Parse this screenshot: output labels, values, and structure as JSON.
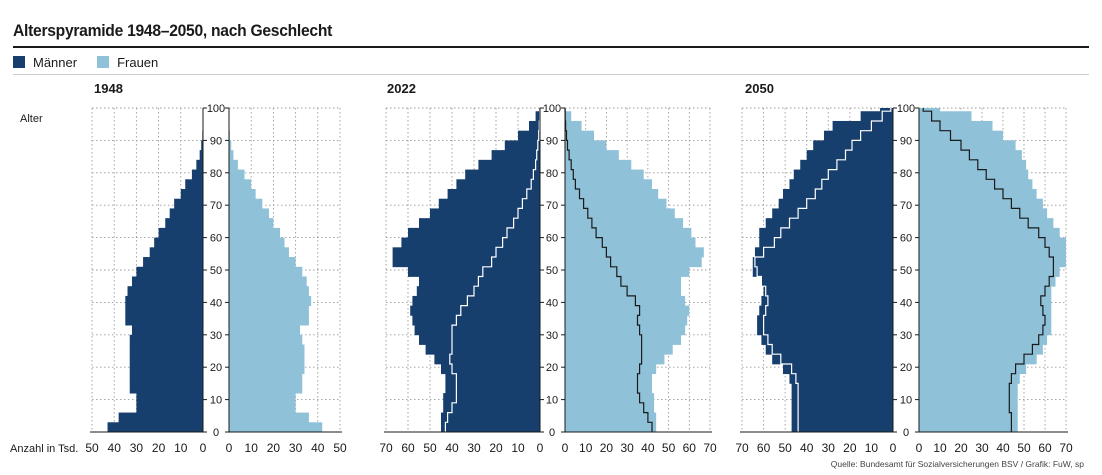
{
  "title": "Alterspyramide 1948–2050, nach Geschlecht",
  "legend": [
    {
      "label": "Männer",
      "color": "#173f6e"
    },
    {
      "label": "Frauen",
      "color": "#8fc1d8"
    }
  ],
  "source": "Quelle: Bundesamt für Sozialversicherungen BSV / Grafik: FuW, sp",
  "chart_data": {
    "type": "bar",
    "ylabel": "Alter",
    "xlabel": "Anzahl in Tsd.",
    "age_ticks": [
      0,
      10,
      20,
      30,
      40,
      50,
      60,
      70,
      80,
      90,
      100
    ],
    "ages": [
      0,
      3,
      6,
      9,
      12,
      15,
      18,
      21,
      24,
      27,
      30,
      33,
      36,
      39,
      42,
      45,
      48,
      51,
      54,
      57,
      60,
      63,
      66,
      69,
      72,
      75,
      78,
      81,
      84,
      87,
      90,
      93,
      96,
      99
    ],
    "panels": [
      {
        "year": "1948",
        "xmax": 50,
        "x_ticks_left": [
          50,
          40,
          30,
          20,
          10,
          0
        ],
        "x_ticks_right": [
          0,
          10,
          20,
          30,
          40,
          50
        ],
        "men": [
          43,
          38,
          30,
          30,
          33,
          33,
          33,
          33,
          33,
          33,
          32,
          35,
          35,
          35,
          34,
          32,
          30,
          27,
          24,
          22,
          20,
          17,
          15,
          13,
          10,
          8,
          5,
          3,
          1.5,
          0.8,
          0.3,
          0.1,
          0.05,
          0
        ],
        "women": [
          42,
          36,
          30,
          30,
          33,
          33,
          34,
          34,
          34,
          33,
          32,
          36,
          36,
          37,
          36,
          35,
          33,
          30,
          27,
          25,
          23,
          20,
          18,
          15,
          12,
          10,
          7,
          4,
          2,
          1,
          0.4,
          0.1,
          0.05,
          0
        ],
        "men_line": [],
        "women_line": []
      },
      {
        "year": "2022",
        "xmax": 70,
        "x_ticks_left": [
          70,
          60,
          50,
          40,
          30,
          20,
          10,
          0
        ],
        "x_ticks_right": [
          0,
          10,
          20,
          30,
          40,
          50,
          60,
          70
        ],
        "men": [
          45,
          45,
          44,
          44,
          43,
          43,
          45,
          48,
          52,
          55,
          57,
          58,
          59,
          58,
          56,
          55,
          60,
          67,
          67,
          63,
          60,
          55,
          50,
          46,
          42,
          38,
          34,
          28,
          22,
          16,
          10,
          5,
          2,
          0.3
        ],
        "women": [
          44,
          44,
          43,
          43,
          42,
          42,
          44,
          48,
          52,
          56,
          58,
          59,
          60,
          58,
          56,
          56,
          60,
          66,
          67,
          63,
          61,
          57,
          53,
          49,
          45,
          42,
          38,
          32,
          26,
          20,
          14,
          8,
          3,
          0.5
        ],
        "men_line": [
          43,
          42,
          40,
          38,
          38,
          38,
          40,
          41,
          40,
          40,
          40,
          38,
          36,
          33,
          30,
          28,
          26,
          22,
          20,
          17,
          15,
          12,
          10,
          8,
          6,
          4,
          3,
          2,
          1.5,
          1,
          0.6,
          0.3,
          0.1,
          0
        ],
        "women_line": [
          42,
          40,
          38,
          36,
          35,
          35,
          36,
          37,
          37,
          37,
          36,
          35,
          36,
          34,
          30,
          27,
          25,
          22,
          20,
          18,
          15,
          13,
          11,
          9,
          7,
          5,
          4,
          3,
          2,
          1.2,
          0.7,
          0.3,
          0.1,
          0
        ]
      },
      {
        "year": "2050",
        "xmax": 70,
        "x_ticks_left": [
          70,
          60,
          50,
          40,
          30,
          20,
          10,
          0
        ],
        "x_ticks_right": [
          0,
          10,
          20,
          30,
          40,
          50,
          60,
          70
        ],
        "men": [
          47,
          47,
          47,
          47,
          47,
          48,
          51,
          56,
          59,
          61,
          63,
          63,
          62,
          61,
          60,
          61,
          65,
          65,
          64,
          62,
          62,
          59,
          56,
          53,
          51,
          48,
          46,
          43,
          40,
          37,
          32,
          28,
          15,
          6
        ],
        "women": [
          47,
          47,
          47,
          47,
          47,
          48,
          51,
          56,
          59,
          61,
          63,
          63,
          63,
          63,
          63,
          65,
          67,
          70,
          70,
          70,
          67,
          64,
          61,
          59,
          56,
          54,
          52,
          51,
          49,
          46,
          40,
          35,
          25,
          10
        ],
        "men_line": [
          44,
          44,
          44,
          44,
          44,
          45,
          47,
          52,
          56,
          58,
          60,
          60,
          59,
          58,
          59,
          61,
          63,
          64,
          60,
          55,
          52,
          48,
          44,
          40,
          36,
          33,
          30,
          26,
          22,
          19,
          15,
          10,
          5,
          1
        ],
        "women_line": [
          44,
          44,
          43,
          43,
          43,
          44,
          46,
          50,
          54,
          57,
          59,
          60,
          59,
          58,
          60,
          62,
          64,
          64,
          62,
          60,
          57,
          52,
          48,
          44,
          40,
          36,
          32,
          28,
          24,
          20,
          15,
          10,
          6,
          2
        ]
      }
    ]
  }
}
